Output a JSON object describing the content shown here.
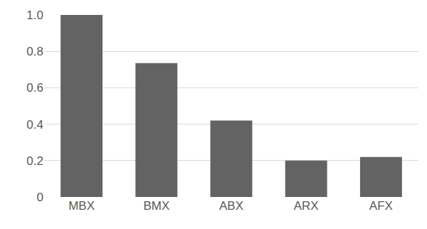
{
  "chart_data": {
    "type": "bar",
    "categories": [
      "MBX",
      "BMX",
      "ABX",
      "ARX",
      "AFX"
    ],
    "values": [
      1.0,
      0.735,
      0.42,
      0.2,
      0.22
    ],
    "color": "#636363",
    "ylim": [
      0,
      1
    ],
    "yticks": [
      0,
      0.2,
      0.4,
      0.6,
      0.8,
      {
        "value": 1,
        "label": "1.0"
      }
    ],
    "grid": true
  }
}
